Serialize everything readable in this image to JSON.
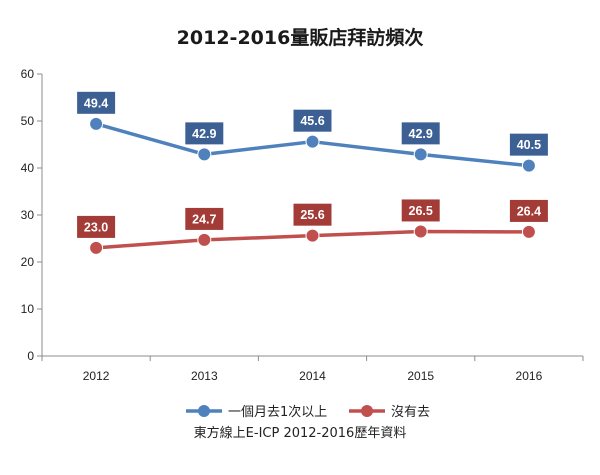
{
  "chart_data": {
    "type": "line",
    "title": "2012-2016量販店拜訪頻次",
    "categories": [
      "2012",
      "2013",
      "2014",
      "2015",
      "2016"
    ],
    "yticks": [
      "0",
      "10",
      "20",
      "30",
      "40",
      "50",
      "60"
    ],
    "ylim": [
      0,
      60
    ],
    "grid": false,
    "legend_position": "bottom",
    "series": [
      {
        "name": "一個月去1次以上",
        "values": [
          49.4,
          42.9,
          45.6,
          42.9,
          40.5
        ],
        "labels": [
          "49.4",
          "42.9",
          "45.6",
          "42.9",
          "40.5"
        ],
        "color": "#4f81bd",
        "label_color": "#3d6094"
      },
      {
        "name": "沒有去",
        "values": [
          23.0,
          24.7,
          25.6,
          26.5,
          26.4
        ],
        "labels": [
          "23.0",
          "24.7",
          "25.6",
          "26.5",
          "26.4"
        ],
        "color": "#c0504d",
        "label_color": "#a33b37"
      }
    ],
    "source": "東方線上E-ICP 2012-2016歷年資料"
  }
}
